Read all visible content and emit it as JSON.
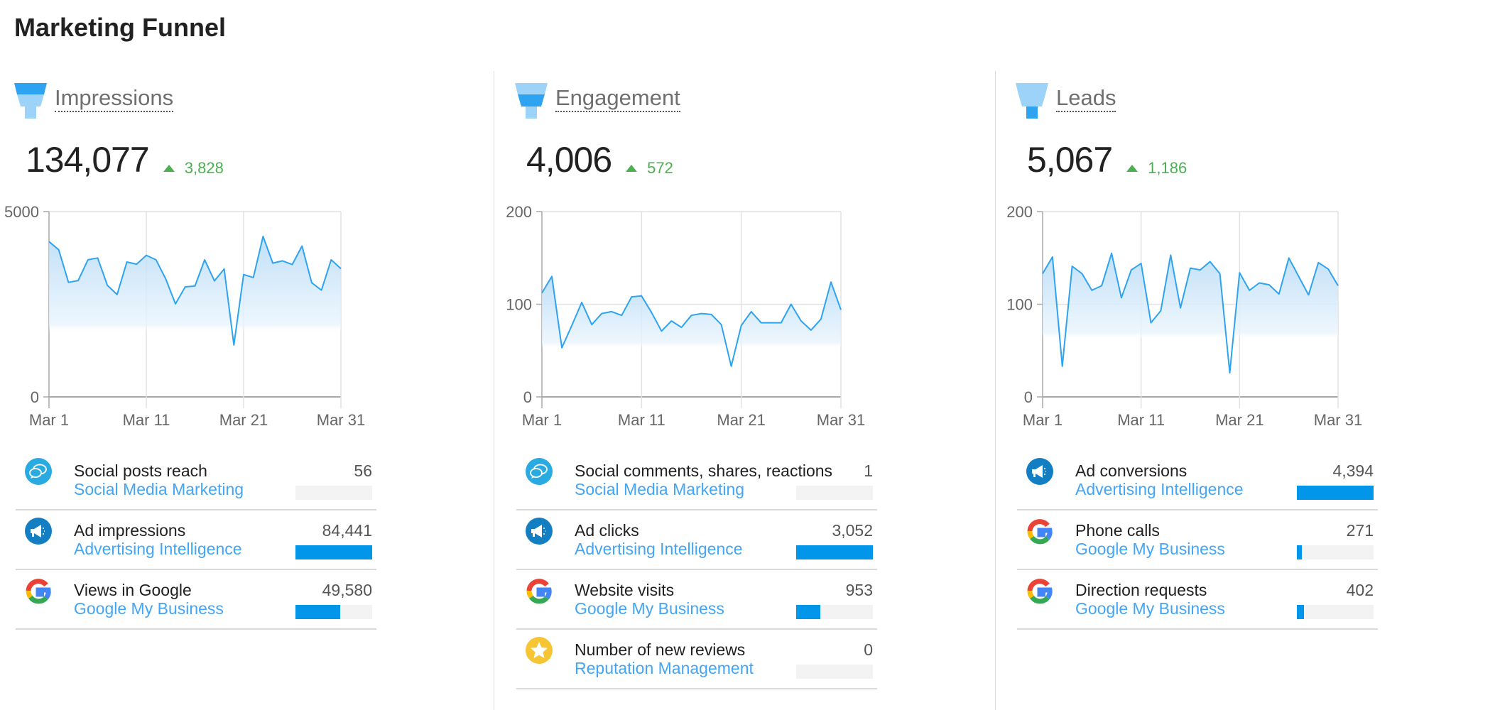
{
  "title": "Marketing Funnel",
  "colors": {
    "accent": "#0296ea",
    "line": "#2ea3f2",
    "positive": "#4caf50",
    "link": "#42a5f5"
  },
  "columns": [
    {
      "label": "Impressions",
      "funnel_stage": "top",
      "value": "134,077",
      "delta": "3,828",
      "delta_direction": "up",
      "chart_data": {
        "type": "area",
        "x": [
          "Mar 1",
          "Mar 2",
          "Mar 3",
          "Mar 4",
          "Mar 5",
          "Mar 6",
          "Mar 7",
          "Mar 8",
          "Mar 9",
          "Mar 10",
          "Mar 11",
          "Mar 12",
          "Mar 13",
          "Mar 14",
          "Mar 15",
          "Mar 16",
          "Mar 17",
          "Mar 18",
          "Mar 19",
          "Mar 20",
          "Mar 21",
          "Mar 22",
          "Mar 23",
          "Mar 24",
          "Mar 25",
          "Mar 26",
          "Mar 27",
          "Mar 28",
          "Mar 29",
          "Mar 30",
          "Mar 31"
        ],
        "values": [
          4190,
          3970,
          3090,
          3140,
          3700,
          3750,
          3010,
          2760,
          3640,
          3580,
          3820,
          3700,
          3180,
          2510,
          2970,
          2990,
          3700,
          3130,
          3450,
          1400,
          3300,
          3220,
          4330,
          3610,
          3670,
          3570,
          4070,
          3080,
          2880,
          3700,
          3460
        ],
        "ylim": [
          0,
          5000
        ],
        "yticks": [
          "0",
          "5000"
        ],
        "xticks": [
          "Mar 1",
          "Mar 11",
          "Mar 21",
          "Mar 31"
        ],
        "grid": true
      },
      "items": [
        {
          "title": "Social posts reach",
          "source": "Social Media Marketing",
          "value": "56",
          "fraction": 0.0007,
          "icon": "chat-bubbles-icon"
        },
        {
          "title": "Ad impressions",
          "source": "Advertising Intelligence",
          "value": "84,441",
          "fraction": 1.0,
          "icon": "megaphone-icon"
        },
        {
          "title": "Views in Google",
          "source": "Google My Business",
          "value": "49,580",
          "fraction": 0.587,
          "icon": "google-icon"
        }
      ]
    },
    {
      "label": "Engagement",
      "funnel_stage": "middle",
      "value": "4,006",
      "delta": "572",
      "delta_direction": "up",
      "chart_data": {
        "type": "area",
        "x": [
          "Mar 1",
          "Mar 2",
          "Mar 3",
          "Mar 4",
          "Mar 5",
          "Mar 6",
          "Mar 7",
          "Mar 8",
          "Mar 9",
          "Mar 10",
          "Mar 11",
          "Mar 12",
          "Mar 13",
          "Mar 14",
          "Mar 15",
          "Mar 16",
          "Mar 17",
          "Mar 18",
          "Mar 19",
          "Mar 20",
          "Mar 21",
          "Mar 22",
          "Mar 23",
          "Mar 24",
          "Mar 25",
          "Mar 26",
          "Mar 27",
          "Mar 28",
          "Mar 29",
          "Mar 30",
          "Mar 31"
        ],
        "values": [
          112,
          130,
          53,
          77,
          102,
          78,
          90,
          92,
          88,
          108,
          109,
          91,
          71,
          82,
          75,
          88,
          90,
          89,
          78,
          33,
          77,
          92,
          80,
          80,
          80,
          100,
          82,
          72,
          84,
          124,
          94
        ],
        "ylim": [
          0,
          200
        ],
        "yticks": [
          "0",
          "100",
          "200"
        ],
        "xticks": [
          "Mar 1",
          "Mar 11",
          "Mar 21",
          "Mar 31"
        ],
        "grid": true
      },
      "items": [
        {
          "title": "Social comments, shares, reactions",
          "source": "Social Media Marketing",
          "value": "1",
          "fraction": 0.0003,
          "icon": "chat-bubbles-icon"
        },
        {
          "title": "Ad clicks",
          "source": "Advertising Intelligence",
          "value": "3,052",
          "fraction": 1.0,
          "icon": "megaphone-icon"
        },
        {
          "title": "Website visits",
          "source": "Google My Business",
          "value": "953",
          "fraction": 0.312,
          "icon": "google-icon"
        },
        {
          "title": "Number of new reviews",
          "source": "Reputation Management",
          "value": "0",
          "fraction": 0,
          "icon": "star-icon"
        }
      ]
    },
    {
      "label": "Leads",
      "funnel_stage": "bottom",
      "value": "5,067",
      "delta": "1,186",
      "delta_direction": "up",
      "chart_data": {
        "type": "area",
        "x": [
          "Mar 1",
          "Mar 2",
          "Mar 3",
          "Mar 4",
          "Mar 5",
          "Mar 6",
          "Mar 7",
          "Mar 8",
          "Mar 9",
          "Mar 10",
          "Mar 11",
          "Mar 12",
          "Mar 13",
          "Mar 14",
          "Mar 15",
          "Mar 16",
          "Mar 17",
          "Mar 18",
          "Mar 19",
          "Mar 20",
          "Mar 21",
          "Mar 22",
          "Mar 23",
          "Mar 24",
          "Mar 25",
          "Mar 26",
          "Mar 27",
          "Mar 28",
          "Mar 29",
          "Mar 30",
          "Mar 31"
        ],
        "values": [
          133,
          151,
          33,
          141,
          133,
          115,
          120,
          155,
          107,
          137,
          144,
          80,
          93,
          153,
          96,
          139,
          137,
          146,
          133,
          26,
          134,
          115,
          123,
          121,
          111,
          150,
          130,
          110,
          145,
          138,
          120
        ],
        "ylim": [
          0,
          200
        ],
        "yticks": [
          "0",
          "100",
          "200"
        ],
        "xticks": [
          "Mar 1",
          "Mar 11",
          "Mar 21",
          "Mar 31"
        ],
        "grid": true
      },
      "items": [
        {
          "title": "Ad conversions",
          "source": "Advertising Intelligence",
          "value": "4,394",
          "fraction": 1.0,
          "icon": "megaphone-icon"
        },
        {
          "title": "Phone calls",
          "source": "Google My Business",
          "value": "271",
          "fraction": 0.062,
          "icon": "google-icon"
        },
        {
          "title": "Direction requests",
          "source": "Google My Business",
          "value": "402",
          "fraction": 0.091,
          "icon": "google-icon"
        }
      ]
    }
  ]
}
